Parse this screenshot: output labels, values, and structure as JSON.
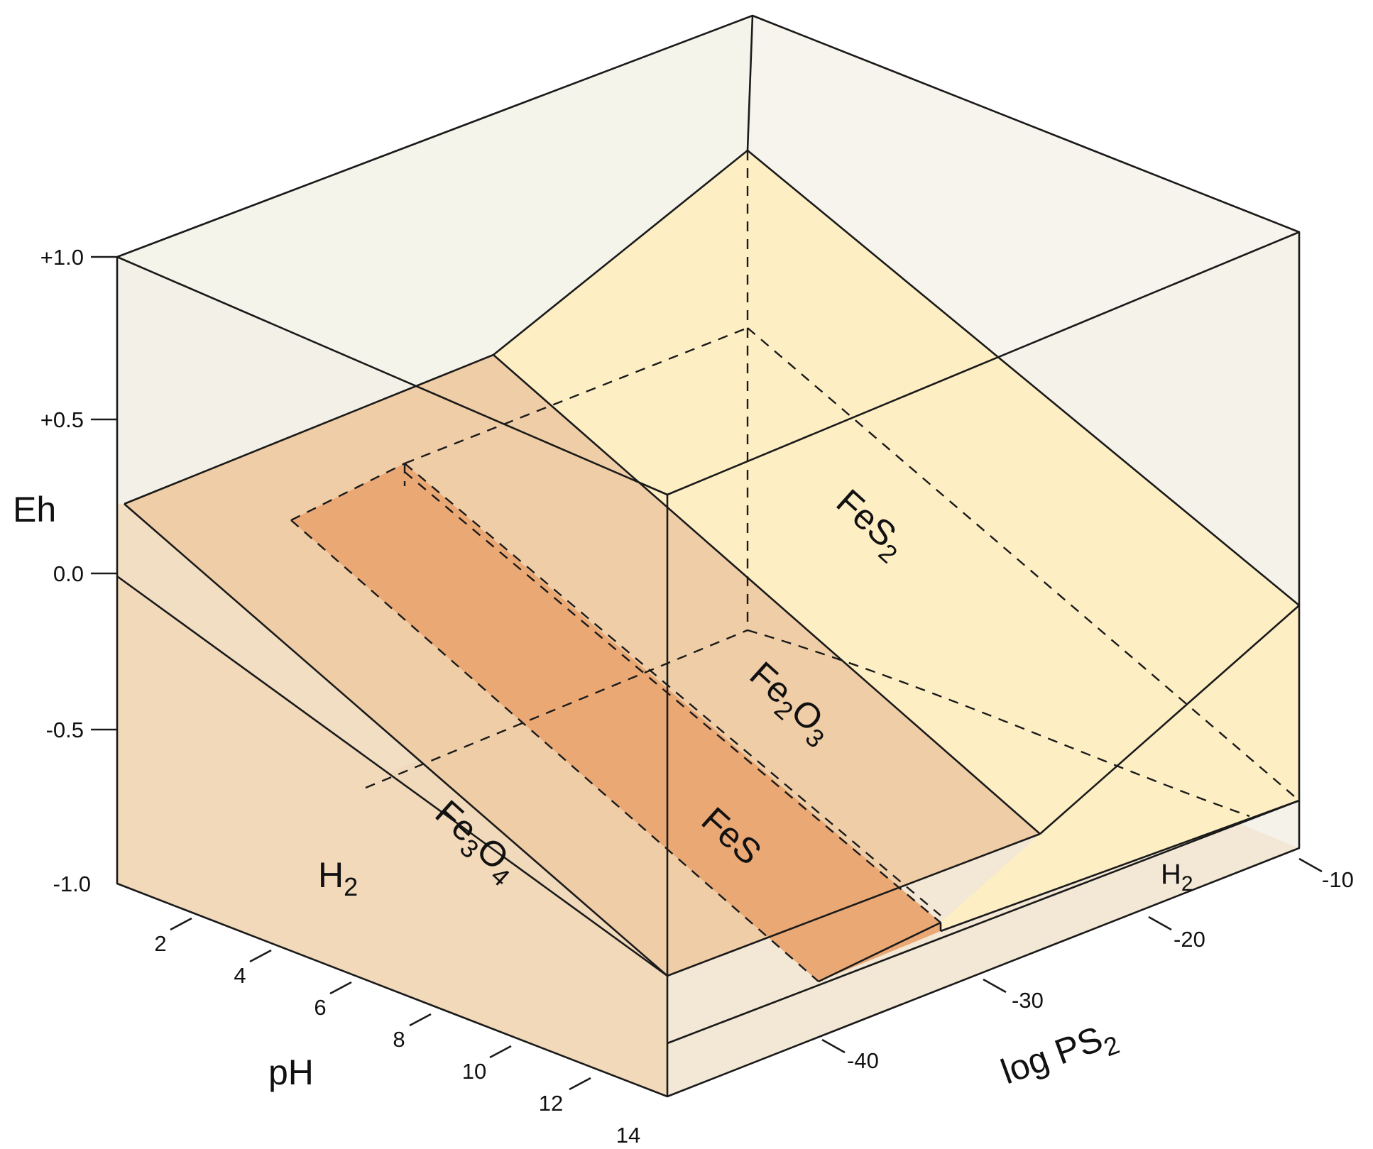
{
  "axes": {
    "eh": {
      "title": "Eh",
      "ticks": [
        "+1.0",
        "+0.5",
        "0.0",
        "-0.5",
        "-1.0"
      ]
    },
    "ph": {
      "title": "pH",
      "ticks": [
        "2",
        "4",
        "6",
        "8",
        "10",
        "12",
        "14"
      ]
    },
    "logps2": {
      "title_main": "log PS",
      "title_sub": "2",
      "ticks": [
        "-10",
        "-20",
        "-30",
        "-40"
      ]
    }
  },
  "regions": {
    "fes2": {
      "main": "FeS",
      "sub": "2"
    },
    "fe2o3": {
      "a": "Fe",
      "a_sub": "2",
      "b": "O",
      "b_sub": "3"
    },
    "fes": {
      "main": "FeS"
    },
    "fe3o4": {
      "a": "Fe",
      "a_sub": "3",
      "b": "O",
      "b_sub": "4"
    },
    "h2_front": {
      "main": "H",
      "sub": "2"
    },
    "h2_right": {
      "main": "H",
      "sub": "2"
    }
  },
  "colors": {
    "box_face": "#f2f1e6",
    "h2_floor": "#f3e6d2",
    "fe2o3_fill": "#efcda6",
    "fes2_fill": "#fdeec4",
    "fes_fill": "#eaa874"
  }
}
